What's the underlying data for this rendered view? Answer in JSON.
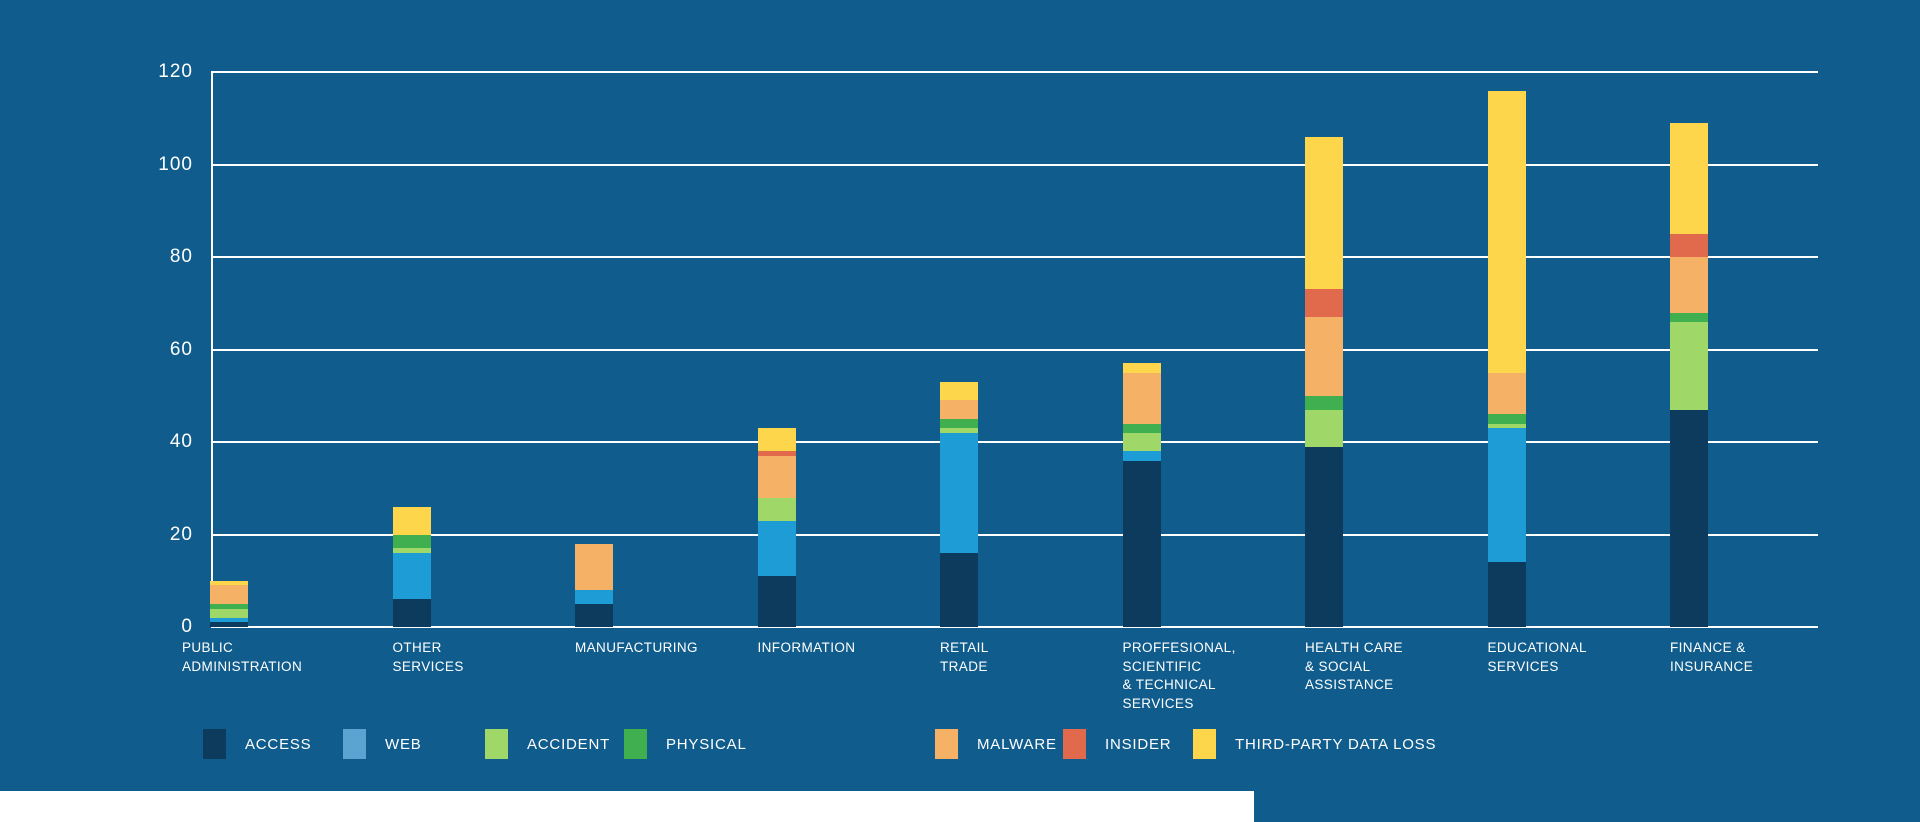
{
  "page": {
    "background_color": "#105D8D",
    "text_color": "#FFFFFF",
    "gridline_color": "#FFFFFF",
    "footer_bar_color": "#FFFFFF"
  },
  "chart_data": {
    "type": "bar",
    "stacked": true,
    "title": "",
    "xlabel": "",
    "ylabel": "",
    "ylim": [
      0,
      120
    ],
    "yticks": [
      "0",
      "20",
      "40",
      "60",
      "80",
      "100",
      "120"
    ],
    "grid": true,
    "legend_position": "bottom",
    "categories": [
      "PUBLIC ADMINISTRATION",
      "OTHER SERVICES",
      "MANUFACTURING",
      "INFORMATION",
      "RETAIL TRADE",
      "PROFFESIONAL, SCIENTIFIC & TECHNICAL SERVICES",
      "HEALTH CARE & SOCIAL ASSISTANCE",
      "EDUCATIONAL SERVICES",
      "FINANCE & INSURANCE"
    ],
    "category_label_lines": [
      [
        "PUBLIC",
        "ADMINISTRATION"
      ],
      [
        "OTHER",
        "SERVICES"
      ],
      [
        "MANUFACTURING"
      ],
      [
        "INFORMATION"
      ],
      [
        "RETAIL",
        "TRADE"
      ],
      [
        "PROFFESIONAL,",
        "SCIENTIFIC",
        "& TECHNICAL",
        "SERVICES"
      ],
      [
        "HEALTH CARE",
        "& SOCIAL",
        "ASSISTANCE"
      ],
      [
        "EDUCATIONAL",
        "SERVICES"
      ],
      [
        "FINANCE &",
        "INSURANCE"
      ]
    ],
    "series": [
      {
        "name": "ACCESS",
        "color": "#0C3B5E",
        "values": [
          1,
          6,
          5,
          11,
          16,
          36,
          39,
          14,
          47
        ]
      },
      {
        "name": "WEB",
        "color": "#1E9CD6",
        "legend_color": "#5BA3D1",
        "values": [
          1,
          10,
          3,
          12,
          26,
          2,
          0,
          29,
          0
        ]
      },
      {
        "name": "ACCIDENT",
        "color": "#9FD869",
        "values": [
          2,
          1,
          0,
          5,
          1,
          4,
          8,
          1,
          19
        ]
      },
      {
        "name": "PHYSICAL",
        "color": "#3FAF50",
        "values": [
          1,
          3,
          0,
          0,
          2,
          2,
          3,
          2,
          2
        ]
      },
      {
        "name": "MALWARE",
        "color": "#F5B267",
        "values": [
          4,
          0,
          10,
          9,
          4,
          11,
          17,
          9,
          12
        ]
      },
      {
        "name": "INSIDER",
        "color": "#E06A4B",
        "values": [
          0,
          0,
          0,
          1,
          0,
          0,
          6,
          0,
          5
        ]
      },
      {
        "name": "THIRD-PARTY DATA LOSS",
        "color": "#FDD64B",
        "values": [
          1,
          6,
          0,
          5,
          4,
          2,
          33,
          61,
          24
        ]
      }
    ],
    "totals": [
      10,
      26,
      18,
      43,
      53,
      57,
      106,
      116,
      109
    ]
  }
}
